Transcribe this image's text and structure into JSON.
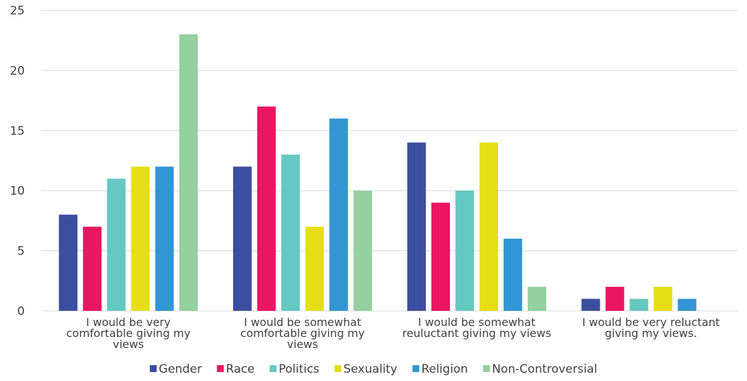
{
  "chart_data": {
    "type": "bar",
    "title": "",
    "xlabel": "",
    "ylabel": "",
    "ylim": [
      0,
      25
    ],
    "yticks": [
      0,
      5,
      10,
      15,
      20,
      25
    ],
    "grid": true,
    "legend_position": "bottom",
    "categories": [
      [
        "I would be very",
        "comfortable giving my",
        "views"
      ],
      [
        "I would be somewhat",
        "comfortable giving my",
        "views"
      ],
      [
        "I would be somewhat",
        "reuluctant giving my views"
      ],
      [
        "I would be very reluctant",
        "giving my views."
      ]
    ],
    "series": [
      {
        "name": "Gender",
        "color": "#3c4ea0",
        "values": [
          8,
          12,
          14,
          1
        ]
      },
      {
        "name": "Race",
        "color": "#ea1660",
        "values": [
          7,
          17,
          9,
          2
        ]
      },
      {
        "name": "Politics",
        "color": "#66c8c2",
        "values": [
          11,
          13,
          10,
          1
        ]
      },
      {
        "name": "Sexuality",
        "color": "#e6de16",
        "values": [
          12,
          7,
          14,
          2
        ]
      },
      {
        "name": "Religion",
        "color": "#3296d4",
        "values": [
          12,
          16,
          6,
          1
        ]
      },
      {
        "name": "Non-Controversial",
        "color": "#94d0a0",
        "values": [
          23,
          10,
          2,
          null
        ]
      }
    ]
  }
}
